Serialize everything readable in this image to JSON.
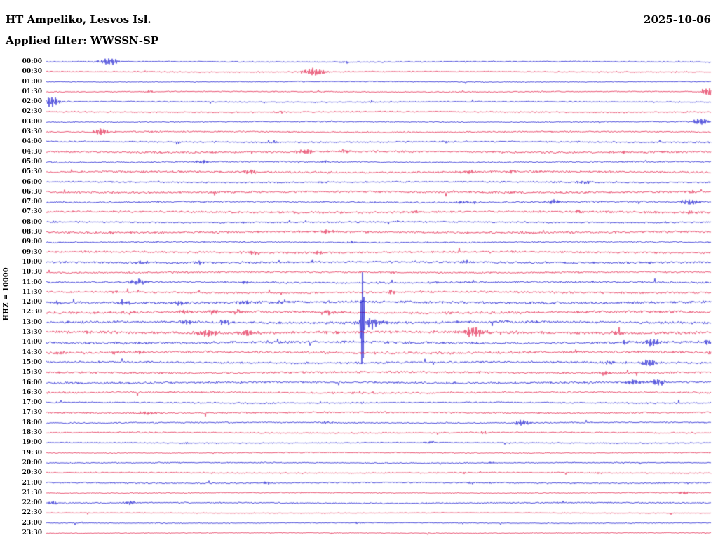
{
  "header": {
    "station": "HT Ampeliko, Lesvos Isl.",
    "date": "2025-10-06",
    "filter_label": "Applied filter: WWSSN-SP"
  },
  "axis": {
    "scale_label": "HHZ = 10000"
  },
  "colors": {
    "background": "#ffffff",
    "text": "#000000",
    "trace_blue": "#0000cc",
    "trace_red": "#e0103c"
  },
  "chart_data": {
    "type": "line",
    "subtype": "helicorder-seismogram",
    "title": "HT Ampeliko, Lesvos Isl.",
    "date": "2025-10-06",
    "filter": "WWSSN-SP",
    "channel_scale": "HHZ = 10000",
    "minutes_per_row": 30,
    "first_row": "00:00",
    "last_row": "23:30",
    "row_color_alternation": [
      "blue",
      "red"
    ],
    "event_fields": "x=fraction of row width, amp=peak amplitude px, w=envelope sigma px",
    "rows": [
      {
        "label": "00:00",
        "noise": 1.0,
        "events": [
          {
            "x": 0.094,
            "amp": 5,
            "w": 10
          },
          {
            "x": 0.45,
            "amp": 2,
            "w": 6
          }
        ]
      },
      {
        "label": "00:30",
        "noise": 1.0,
        "events": [
          {
            "x": 0.402,
            "amp": 6,
            "w": 12
          }
        ]
      },
      {
        "label": "01:00",
        "noise": 0.8,
        "events": [
          {
            "x": 0.09,
            "amp": 1.5,
            "w": 4
          }
        ]
      },
      {
        "label": "01:30",
        "noise": 1.0,
        "events": [
          {
            "x": 0.155,
            "amp": 2,
            "w": 4
          },
          {
            "x": 0.995,
            "amp": 7,
            "w": 6
          }
        ]
      },
      {
        "label": "02:00",
        "noise": 1.0,
        "events": [
          {
            "x": 0.006,
            "amp": 9,
            "w": 9
          }
        ]
      },
      {
        "label": "02:30",
        "noise": 1.2,
        "events": [
          {
            "x": 0.35,
            "amp": 1.8,
            "w": 5
          }
        ]
      },
      {
        "label": "03:00",
        "noise": 1.0,
        "events": [
          {
            "x": 0.985,
            "amp": 6,
            "w": 8
          }
        ]
      },
      {
        "label": "03:30",
        "noise": 1.3,
        "events": [
          {
            "x": 0.083,
            "amp": 5,
            "w": 8
          },
          {
            "x": 0.16,
            "amp": 2.2,
            "w": 4
          }
        ]
      },
      {
        "label": "04:00",
        "noise": 1.3,
        "events": [
          {
            "x": 0.345,
            "amp": 2.2,
            "w": 5
          },
          {
            "x": 0.6,
            "amp": 1.8,
            "w": 5
          }
        ]
      },
      {
        "label": "04:30",
        "noise": 1.8,
        "events": [
          {
            "x": 0.391,
            "amp": 3.5,
            "w": 8
          },
          {
            "x": 0.45,
            "amp": 2.5,
            "w": 6
          },
          {
            "x": 0.87,
            "amp": 2.2,
            "w": 6
          }
        ]
      },
      {
        "label": "05:00",
        "noise": 1.3,
        "events": [
          {
            "x": 0.236,
            "amp": 3.2,
            "w": 7
          },
          {
            "x": 0.42,
            "amp": 2,
            "w": 5
          }
        ]
      },
      {
        "label": "05:30",
        "noise": 1.8,
        "events": [
          {
            "x": 0.305,
            "amp": 3,
            "w": 8
          },
          {
            "x": 0.639,
            "amp": 2.8,
            "w": 8
          },
          {
            "x": 0.698,
            "amp": 2.5,
            "w": 6
          }
        ]
      },
      {
        "label": "06:00",
        "noise": 1.4,
        "events": [
          {
            "x": 0.42,
            "amp": 1.8,
            "w": 5
          },
          {
            "x": 0.81,
            "amp": 2.5,
            "w": 7
          }
        ]
      },
      {
        "label": "06:30",
        "noise": 1.8,
        "events": [
          {
            "x": 0.7,
            "amp": 2.2,
            "w": 8
          },
          {
            "x": 0.97,
            "amp": 2.2,
            "w": 5
          }
        ]
      },
      {
        "label": "07:00",
        "noise": 1.5,
        "events": [
          {
            "x": 0.63,
            "amp": 3,
            "w": 9
          },
          {
            "x": 0.764,
            "amp": 3.5,
            "w": 7
          },
          {
            "x": 0.969,
            "amp": 4.5,
            "w": 9
          }
        ]
      },
      {
        "label": "07:30",
        "noise": 1.8,
        "events": [
          {
            "x": 0.56,
            "amp": 2.2,
            "w": 6
          },
          {
            "x": 0.8,
            "amp": 2.5,
            "w": 6
          },
          {
            "x": 0.97,
            "amp": 2.5,
            "w": 5
          }
        ]
      },
      {
        "label": "08:00",
        "noise": 1.4,
        "events": [
          {
            "x": 0.01,
            "amp": 1.8,
            "w": 4
          },
          {
            "x": 0.3,
            "amp": 1.8,
            "w": 5
          }
        ]
      },
      {
        "label": "08:30",
        "noise": 1.9,
        "events": [
          {
            "x": 0.1,
            "amp": 2,
            "w": 5
          },
          {
            "x": 0.42,
            "amp": 2.8,
            "w": 7
          },
          {
            "x": 0.73,
            "amp": 2,
            "w": 5
          }
        ]
      },
      {
        "label": "09:00",
        "noise": 1.4,
        "events": [
          {
            "x": 0.46,
            "amp": 2.2,
            "w": 5
          }
        ]
      },
      {
        "label": "09:30",
        "noise": 1.7,
        "events": [
          {
            "x": 0.31,
            "amp": 2.8,
            "w": 7
          },
          {
            "x": 0.41,
            "amp": 2.5,
            "w": 6
          }
        ]
      },
      {
        "label": "10:00",
        "noise": 1.8,
        "events": [
          {
            "x": 0.145,
            "amp": 3,
            "w": 7
          },
          {
            "x": 0.23,
            "amp": 2.5,
            "w": 6
          },
          {
            "x": 0.4,
            "amp": 2.2,
            "w": 5
          },
          {
            "x": 0.63,
            "amp": 2.5,
            "w": 6
          },
          {
            "x": 0.905,
            "amp": 2.5,
            "w": 6
          }
        ]
      },
      {
        "label": "10:30",
        "noise": 1.5,
        "events": [
          {
            "x": 0.52,
            "amp": 1.8,
            "w": 5
          }
        ]
      },
      {
        "label": "11:00",
        "noise": 1.7,
        "events": [
          {
            "x": 0.138,
            "amp": 4.5,
            "w": 8
          },
          {
            "x": 0.3,
            "amp": 2,
            "w": 6
          }
        ]
      },
      {
        "label": "11:30",
        "noise": 1.7,
        "events": [
          {
            "x": 0.1,
            "amp": 2,
            "w": 5
          },
          {
            "x": 0.52,
            "amp": 3,
            "w": 6
          }
        ]
      },
      {
        "label": "12:00",
        "noise": 2.2,
        "events": [
          {
            "x": 0.02,
            "amp": 3,
            "w": 6
          },
          {
            "x": 0.115,
            "amp": 3.5,
            "w": 8
          },
          {
            "x": 0.2,
            "amp": 3,
            "w": 7
          },
          {
            "x": 0.3,
            "amp": 3,
            "w": 7
          },
          {
            "x": 0.355,
            "amp": 3,
            "w": 6
          }
        ]
      },
      {
        "label": "12:30",
        "noise": 2.2,
        "events": [
          {
            "x": 0.125,
            "amp": 3,
            "w": 6
          },
          {
            "x": 0.215,
            "amp": 3.5,
            "w": 7
          },
          {
            "x": 0.25,
            "amp": 4,
            "w": 7
          },
          {
            "x": 0.285,
            "amp": 3.5,
            "w": 6
          },
          {
            "x": 0.42,
            "amp": 3.5,
            "w": 8
          }
        ]
      },
      {
        "label": "13:00",
        "noise": 2.2,
        "events": [
          {
            "x": 0.21,
            "amp": 3.5,
            "w": 8
          },
          {
            "x": 0.267,
            "amp": 4,
            "w": 7
          },
          {
            "x": 0.4757,
            "amp": 80,
            "w": 1.8
          },
          {
            "x": 0.487,
            "amp": 8,
            "w": 12
          }
        ]
      },
      {
        "label": "13:30",
        "noise": 2.4,
        "events": [
          {
            "x": 0.245,
            "amp": 5,
            "w": 12
          },
          {
            "x": 0.3,
            "amp": 4.5,
            "w": 9
          },
          {
            "x": 0.643,
            "amp": 11,
            "w": 10
          },
          {
            "x": 0.86,
            "amp": 3.5,
            "w": 6
          }
        ]
      },
      {
        "label": "14:00",
        "noise": 2.2,
        "events": [
          {
            "x": 0.87,
            "amp": 3,
            "w": 6
          },
          {
            "x": 0.912,
            "amp": 7,
            "w": 7
          },
          {
            "x": 0.995,
            "amp": 4,
            "w": 5
          }
        ]
      },
      {
        "label": "14:30",
        "noise": 2.2,
        "events": [
          {
            "x": 0.018,
            "amp": 3.5,
            "w": 6
          },
          {
            "x": 0.105,
            "amp": 3,
            "w": 6
          },
          {
            "x": 0.14,
            "amp": 3.5,
            "w": 7
          },
          {
            "x": 0.995,
            "amp": 3,
            "w": 5
          }
        ]
      },
      {
        "label": "15:00",
        "noise": 1.8,
        "events": [
          {
            "x": 0.845,
            "amp": 3,
            "w": 6
          },
          {
            "x": 0.906,
            "amp": 6,
            "w": 8
          }
        ]
      },
      {
        "label": "15:30",
        "noise": 1.8,
        "events": [
          {
            "x": 0.84,
            "amp": 3.5,
            "w": 7
          }
        ]
      },
      {
        "label": "16:00",
        "noise": 1.7,
        "events": [
          {
            "x": 0.885,
            "amp": 4,
            "w": 7
          },
          {
            "x": 0.92,
            "amp": 5.5,
            "w": 8
          }
        ]
      },
      {
        "label": "16:30",
        "noise": 1.6,
        "events": [
          {
            "x": 0.47,
            "amp": 1.8,
            "w": 5
          }
        ]
      },
      {
        "label": "17:00",
        "noise": 1.3,
        "events": [
          {
            "x": 0.4757,
            "amp": 2.5,
            "w": 2
          }
        ]
      },
      {
        "label": "17:30",
        "noise": 1.5,
        "events": [
          {
            "x": 0.152,
            "amp": 2.8,
            "w": 10
          }
        ]
      },
      {
        "label": "18:00",
        "noise": 1.2,
        "events": [
          {
            "x": 0.42,
            "amp": 1.8,
            "w": 5
          },
          {
            "x": 0.716,
            "amp": 5,
            "w": 8
          }
        ]
      },
      {
        "label": "18:30",
        "noise": 1.2,
        "events": [
          {
            "x": 0.66,
            "amp": 2,
            "w": 5
          }
        ]
      },
      {
        "label": "19:00",
        "noise": 1.0,
        "events": [
          {
            "x": 0.21,
            "amp": 1.6,
            "w": 4
          },
          {
            "x": 0.575,
            "amp": 2.2,
            "w": 5
          }
        ]
      },
      {
        "label": "19:30",
        "noise": 1.0,
        "events": []
      },
      {
        "label": "20:00",
        "noise": 1.0,
        "events": [
          {
            "x": 0.67,
            "amp": 1.6,
            "w": 4
          }
        ]
      },
      {
        "label": "20:30",
        "noise": 1.1,
        "events": [
          {
            "x": 0.25,
            "amp": 1.6,
            "w": 4
          },
          {
            "x": 0.63,
            "amp": 1.6,
            "w": 4
          },
          {
            "x": 0.83,
            "amp": 1.8,
            "w": 4
          }
        ]
      },
      {
        "label": "21:00",
        "noise": 1.2,
        "events": [
          {
            "x": 0.33,
            "amp": 2,
            "w": 5
          },
          {
            "x": 0.64,
            "amp": 1.6,
            "w": 4
          }
        ]
      },
      {
        "label": "21:30",
        "noise": 1.0,
        "events": [
          {
            "x": 0.959,
            "amp": 3,
            "w": 6
          }
        ]
      },
      {
        "label": "22:00",
        "noise": 1.2,
        "events": [
          {
            "x": 0.01,
            "amp": 3,
            "w": 5
          },
          {
            "x": 0.125,
            "amp": 3,
            "w": 6
          }
        ]
      },
      {
        "label": "22:30",
        "noise": 0.7,
        "events": []
      },
      {
        "label": "23:00",
        "noise": 0.8,
        "events": [
          {
            "x": 0.47,
            "amp": 1.6,
            "w": 4
          }
        ]
      },
      {
        "label": "23:30",
        "noise": 0.8,
        "events": []
      }
    ]
  }
}
